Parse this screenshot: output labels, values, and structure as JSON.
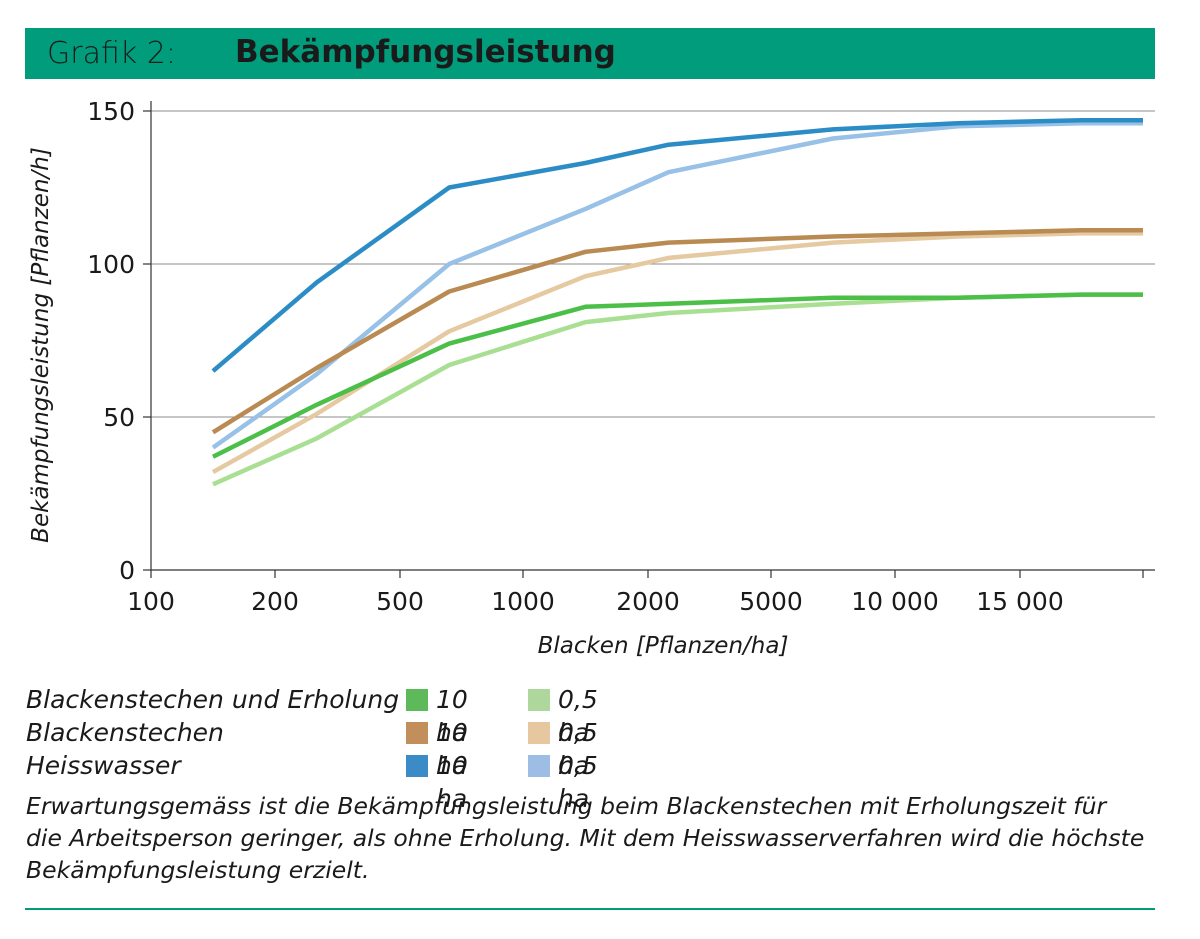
{
  "header": {
    "number": "Grafik 2:",
    "title": "Bekämpfungsleistung"
  },
  "colors": {
    "header_bg": "#009c7b",
    "rule": "#009c7b"
  },
  "chart_data": {
    "type": "line",
    "ylabel": "Bekämpfungsleistung [Pflanzen/h]",
    "xlabel": "Blacken [Pflanzen/ha]",
    "x_ticks": [
      "100",
      "200",
      "500",
      "1000",
      "2000",
      "5000",
      "10 000",
      "15 000"
    ],
    "y_ticks": [
      "0",
      "50",
      "100",
      "150"
    ],
    "ylim": [
      0,
      150
    ],
    "grid": "horizontal",
    "x": [
      "150",
      "300",
      "700",
      "1500",
      "2500",
      "7500",
      "12500",
      "17500",
      "20000"
    ],
    "series": [
      {
        "group": "Blackenstechen und Erholung",
        "size": "10 ha",
        "color": "#4bbf48",
        "values": [
          37,
          54,
          74,
          86,
          87,
          89,
          89,
          90,
          90
        ]
      },
      {
        "group": "Blackenstechen und Erholung",
        "size": "0,5 ha",
        "color": "#a9df93",
        "values": [
          28,
          43,
          67,
          81,
          84,
          87,
          89,
          90,
          90
        ]
      },
      {
        "group": "Blackenstechen",
        "size": "10 ha",
        "color": "#b98a52",
        "values": [
          45,
          66,
          91,
          104,
          107,
          109,
          110,
          111,
          111
        ]
      },
      {
        "group": "Blackenstechen",
        "size": "0,5 ha",
        "color": "#e5c9a1",
        "values": [
          32,
          51,
          78,
          96,
          102,
          107,
          109,
          110,
          110
        ]
      },
      {
        "group": "Heisswasser",
        "size": "10 ha",
        "color": "#2c8cc6",
        "values": [
          65,
          94,
          125,
          133,
          139,
          144,
          146,
          147,
          147
        ]
      },
      {
        "group": "Heisswasser",
        "size": "0,5 ha",
        "color": "#97c1e6",
        "values": [
          40,
          64,
          100,
          118,
          130,
          141,
          145,
          146,
          146
        ]
      }
    ],
    "legend": {
      "rows": [
        {
          "label": "Blackenstechen und Erholung",
          "color_10": "#5eb95a",
          "color_05": "#aed79e"
        },
        {
          "label": "Blackenstechen",
          "color_10": "#c28e5b",
          "color_05": "#e7c79f"
        },
        {
          "label": "Heisswasser",
          "color_10": "#3b8cc6",
          "color_05": "#9dbde4"
        }
      ],
      "size_10": "10 ha",
      "size_05": "0,5 ha"
    }
  },
  "caption": "Erwartungsgemäss ist die Bekämpfungsleistung beim Blackenstechen mit Erholungszeit für die Arbeitsperson geringer, als ohne Erholung. Mit dem Heisswasserverfahren wird die höchste Bekämpfungsleistung erzielt."
}
